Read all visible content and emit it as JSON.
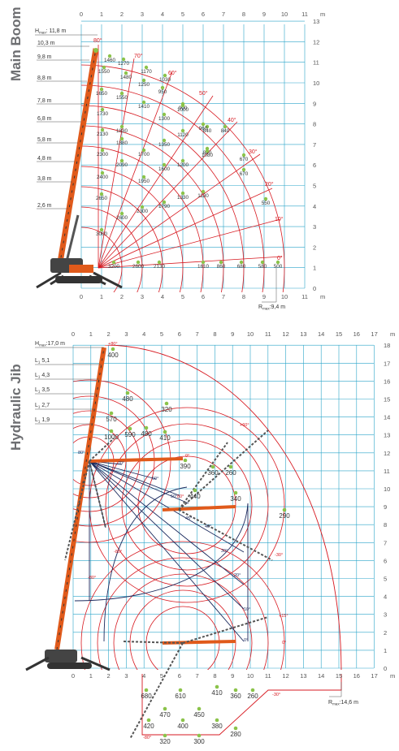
{
  "main_boom": {
    "title": "Main Boom",
    "unit": "m",
    "x_ticks": [
      "0",
      "1",
      "2",
      "3",
      "4",
      "5",
      "6",
      "7",
      "8",
      "9",
      "10",
      "11"
    ],
    "y_ticks": [
      "0",
      "1",
      "2",
      "3",
      "4",
      "5",
      "6",
      "7",
      "8",
      "9",
      "10",
      "11",
      "12",
      "13"
    ],
    "hmax": "H",
    "hmax_sub": "max",
    "hmax_val": ": 11,8 m",
    "rmax": "R",
    "rmax_sub": "max",
    "rmax_val": ":9,4 m",
    "lengths": [
      "10,3 m",
      "9,8 m",
      "8,8 m",
      "7,8 m",
      "6,8 m",
      "5,8 m",
      "4,8 m",
      "3,8 m",
      "2,6 m"
    ],
    "angles": [
      "80°",
      "70°",
      "60°",
      "50°",
      "40°",
      "30°",
      "20°",
      "10°",
      "0°"
    ],
    "capacities": {
      "r1": [
        "1460",
        "1270",
        "1170",
        "1030",
        "950",
        "900",
        "840",
        "840",
        "670",
        "670",
        "550",
        "500"
      ],
      "r2": [
        "1550",
        "1480",
        "1250",
        "1000",
        "960",
        "840",
        "860",
        "680",
        "580"
      ],
      "r3": [
        "1650",
        "1550",
        "1410",
        "1300",
        "1120",
        "1080",
        "1130",
        "1610"
      ],
      "r4": [
        "1730",
        "1830",
        "1700",
        "1350",
        "1200",
        "1330",
        "2130"
      ],
      "r5": [
        "2130",
        "1880",
        "1950",
        "1600",
        "1790",
        "2600"
      ],
      "r6": [
        "2300",
        "2090",
        "2300",
        "2600",
        "3200"
      ],
      "r7": [
        "2400",
        "2650",
        "3000"
      ]
    }
  },
  "hydraulic_jib": {
    "title": "Hydraulic Jib",
    "unit": "m",
    "x_ticks": [
      "0",
      "1",
      "2",
      "3",
      "4",
      "5",
      "6",
      "7",
      "8",
      "9",
      "10",
      "11",
      "12",
      "13",
      "14",
      "15",
      "16",
      "17"
    ],
    "y_ticks": [
      "0",
      "1",
      "2",
      "3",
      "4",
      "5",
      "6",
      "7",
      "8",
      "9",
      "10",
      "11",
      "12",
      "13",
      "14",
      "15",
      "16",
      "17",
      "18"
    ],
    "hmax": "H",
    "hmax_sub": "max",
    "hmax_val": ":17,0 m",
    "rmax": "R",
    "rmax_sub": "max",
    "rmax_val": ":14,6 m",
    "lengths": [
      {
        "p": "L",
        "s": "1",
        "v": " 5,1"
      },
      {
        "p": "L",
        "s": "1",
        "v": " 4,3"
      },
      {
        "p": "L",
        "s": "1",
        "v": " 3,5"
      },
      {
        "p": "L",
        "s": "1",
        "v": " 2,7"
      },
      {
        "p": "L",
        "s": "1",
        "v": " 1,9"
      }
    ],
    "angles_red": [
      "+80°",
      "0°",
      "+60°",
      "-30°",
      "-80°",
      "-80°",
      "+15°",
      "0°",
      "-30°",
      "-80°",
      "80°"
    ],
    "angles_blue": [
      "80°",
      "70°",
      "60°",
      "50°",
      "45°",
      "40°",
      "30°",
      "20°",
      "10°",
      "0°"
    ],
    "capacities": {
      "top": [
        "400",
        "480",
        "320",
        "570",
        "1000",
        "590",
        "480",
        "410",
        "390"
      ],
      "mid": [
        "440",
        "360",
        "260",
        "340",
        "290"
      ],
      "low": [
        "680",
        "610",
        "410",
        "360",
        "260",
        "470",
        "450",
        "420",
        "400",
        "380",
        "320",
        "300",
        "280"
      ]
    }
  },
  "colors": {
    "grid": "#2ba5c9",
    "red": "#d71920",
    "dark_blue": "#1b2a5e",
    "orange": "#e05a1b",
    "green": "#8bc34a",
    "gray": "#6d6e71"
  }
}
